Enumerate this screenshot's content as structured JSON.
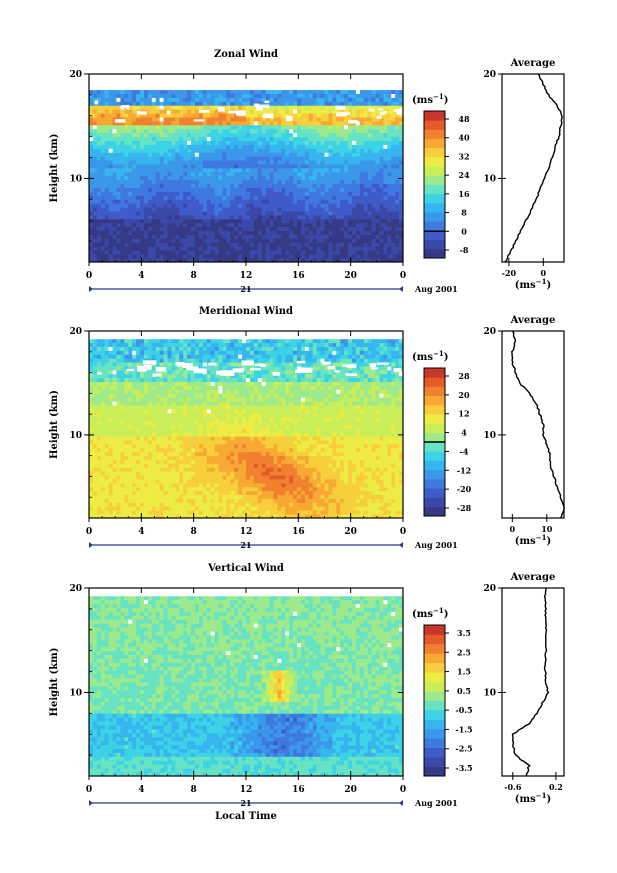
{
  "chart_data": [
    {
      "type": "heatmap",
      "title": "Zonal Wind",
      "ylabel": "Height (km)",
      "ylim": [
        2,
        20
      ],
      "yticks": [
        "20",
        "10"
      ],
      "xlim": [
        0,
        24
      ],
      "xticks": [
        "0",
        "4",
        "8",
        "12",
        "16",
        "20",
        "0"
      ],
      "date_label": "21",
      "date_suffix": "Aug 2001",
      "colorbar": {
        "unit_main": "(ms",
        "unit_sup": "−1",
        "unit_end": ")",
        "ticks": [
          "48",
          "40",
          "32",
          "24",
          "16",
          "8",
          "0",
          "-8"
        ],
        "min": -8,
        "max": 52,
        "zero_line": 0
      },
      "profile": {
        "title": "Average",
        "xticks": [
          "-20",
          "0"
        ],
        "xlim": [
          -24,
          12
        ],
        "yticks": [
          "20",
          "10"
        ],
        "unit_main": "(ms",
        "unit_sup": "−1",
        "unit_end": ")",
        "height": [
          2,
          3,
          4,
          5,
          6,
          7,
          8,
          9,
          10,
          11,
          12,
          13,
          14,
          15,
          16,
          17,
          18,
          19,
          20
        ],
        "values": [
          -22,
          -19,
          -16,
          -13,
          -10,
          -7,
          -4,
          -2,
          1,
          3,
          5,
          7,
          9,
          10,
          11,
          8,
          3,
          0,
          -3
        ]
      }
    },
    {
      "type": "heatmap",
      "title": "Meridional Wind",
      "ylabel": "Height (km)",
      "ylim": [
        2,
        20
      ],
      "yticks": [
        "20",
        "10"
      ],
      "xlim": [
        0,
        24
      ],
      "xticks": [
        "0",
        "4",
        "8",
        "12",
        "16",
        "20",
        "0"
      ],
      "date_label": "21",
      "date_suffix": "Aug 2001",
      "colorbar": {
        "unit_main": "(ms",
        "unit_sup": "−1",
        "unit_end": ")",
        "ticks": [
          "28",
          "20",
          "12",
          "4",
          "-4",
          "-12",
          "-20",
          "-28"
        ],
        "min": -28,
        "max": 32,
        "zero_line": 0
      },
      "profile": {
        "title": "Average",
        "xticks": [
          "0",
          "10"
        ],
        "xlim": [
          -3,
          15
        ],
        "yticks": [
          "20",
          "10"
        ],
        "unit_main": "(ms",
        "unit_sup": "−1",
        "unit_end": ")",
        "height": [
          2,
          3,
          4,
          5,
          6,
          7,
          8,
          9,
          10,
          11,
          12,
          13,
          14,
          15,
          16,
          17,
          18,
          19,
          20
        ],
        "values": [
          14,
          15,
          14,
          13,
          12,
          11,
          11,
          10,
          9,
          9,
          8,
          7,
          5,
          2,
          1,
          0,
          0,
          1,
          0
        ]
      }
    },
    {
      "type": "heatmap",
      "title": "Vertical Wind",
      "ylabel": "Height (km)",
      "xlabel": "Local Time",
      "ylim": [
        2,
        20
      ],
      "yticks": [
        "20",
        "10"
      ],
      "xlim": [
        0,
        24
      ],
      "xticks": [
        "0",
        "4",
        "8",
        "12",
        "16",
        "20",
        "0"
      ],
      "date_label": "21",
      "date_suffix": "Aug 2001",
      "colorbar": {
        "unit_main": "(ms",
        "unit_sup": "−1",
        "unit_end": ")",
        "ticks": [
          "3.5",
          "2.5",
          "1.5",
          "0.5",
          "-0.5",
          "-1.5",
          "-2.5",
          "-3.5"
        ],
        "min": -3.5,
        "max": 4,
        "zero_line": null
      },
      "profile": {
        "title": "Average",
        "xticks": [
          "-0.6",
          "0.2"
        ],
        "xlim": [
          -0.8,
          0.35
        ],
        "yticks": [
          "20",
          "10"
        ],
        "unit_main": "(ms",
        "unit_sup": "−1",
        "unit_end": ")",
        "height": [
          2,
          3,
          4,
          5,
          6,
          7,
          8,
          9,
          10,
          11,
          12,
          13,
          14,
          15,
          16,
          17,
          18,
          19,
          20
        ],
        "values": [
          -0.35,
          -0.3,
          -0.55,
          -0.6,
          -0.6,
          -0.3,
          -0.15,
          -0.05,
          0.05,
          0.02,
          0.0,
          0.0,
          0.02,
          0.0,
          0.02,
          0.0,
          0.02,
          0.0,
          0.02
        ]
      }
    }
  ]
}
